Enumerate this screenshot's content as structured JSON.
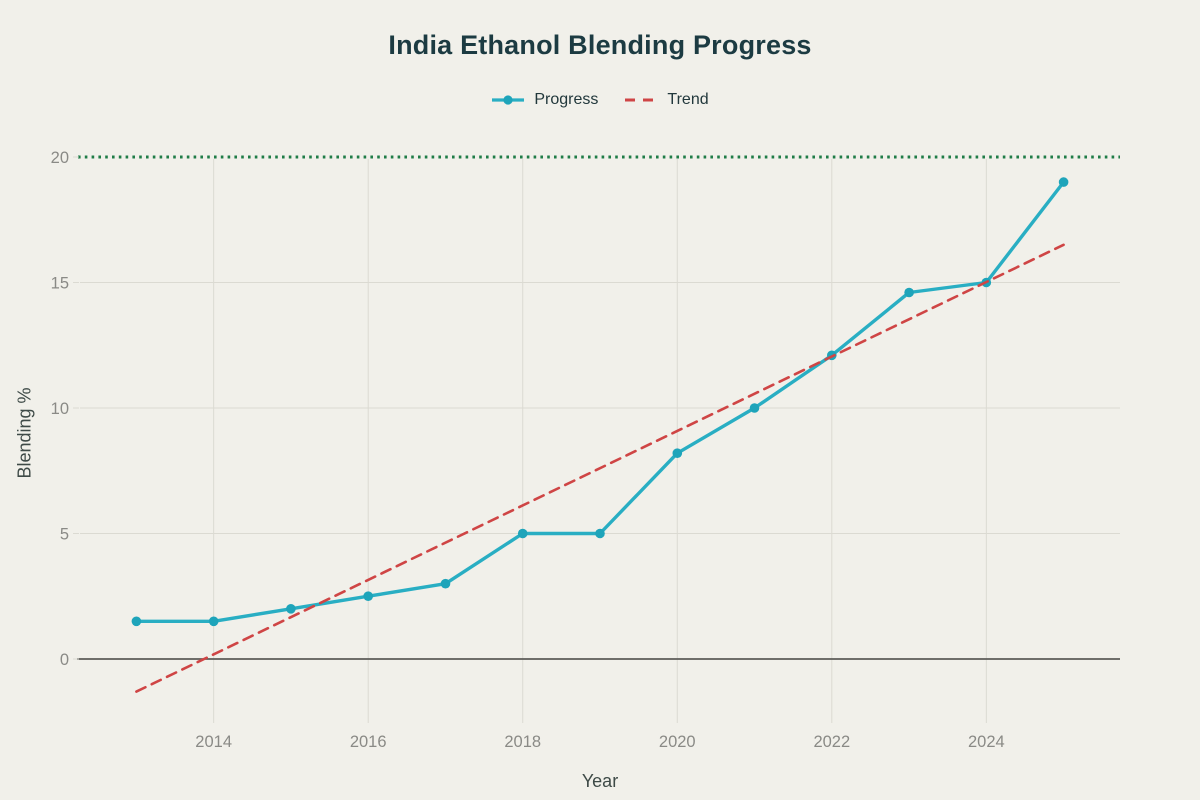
{
  "title": "India Ethanol Blending Progress",
  "chart_data": {
    "type": "line",
    "title": "India Ethanol Blending Progress",
    "xlabel": "Year",
    "ylabel": "Blending %",
    "x": [
      2013,
      2014,
      2015,
      2016,
      2017,
      2018,
      2019,
      2020,
      2021,
      2022,
      2023,
      2024,
      2025
    ],
    "series": [
      {
        "name": "Progress",
        "color": "#29aec3",
        "marker_color": "#1ea4ba",
        "style": "solid",
        "markers": true,
        "line_width": 3.4,
        "values": [
          1.5,
          1.5,
          2.0,
          2.5,
          3.0,
          5.0,
          5.0,
          8.2,
          10.0,
          12.1,
          14.6,
          15.0,
          19.0
        ]
      },
      {
        "name": "Trend",
        "color": "#cf4545",
        "style": "dashed",
        "markers": false,
        "line_width": 2.6,
        "x": [
          2013,
          2025
        ],
        "values": [
          -1.3,
          16.5
        ]
      }
    ],
    "target_line": {
      "value": 20,
      "color": "#1f7c47",
      "style": "dotted"
    },
    "xticks": [
      2014,
      2016,
      2018,
      2020,
      2022,
      2024
    ],
    "yticks": [
      0,
      5,
      10,
      15,
      20
    ],
    "xlim": [
      2012.27,
      2025.73
    ],
    "ylim": [
      -2.55,
      20
    ],
    "legend_position": "top",
    "grid": true
  },
  "colors": {
    "background": "#f1f0ea",
    "title_text": "#1c3b42",
    "legend_text": "#22383c",
    "grid_line": "#dbdad2",
    "zero_line": "#5c5c58",
    "tick_text": "#8a8a86",
    "axis_title_text": "#3e4a47"
  }
}
